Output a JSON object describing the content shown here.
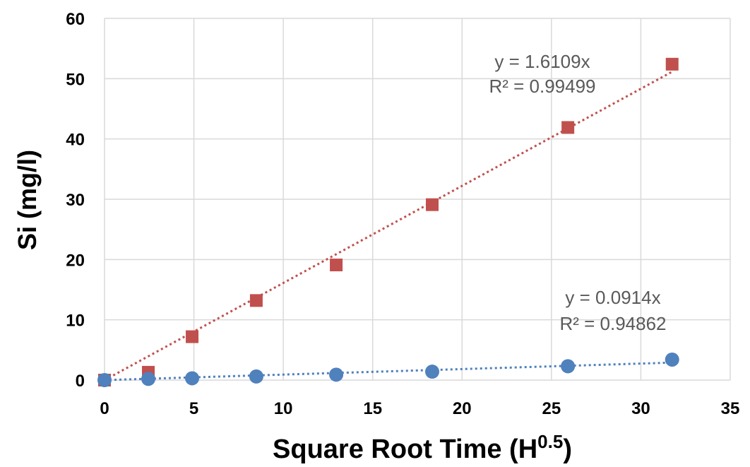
{
  "chart_data": {
    "type": "scatter",
    "xlabel": {
      "base": "Square Root Time (H",
      "sup": "0.5",
      "close": ")"
    },
    "ylabel": "Si (mg/l)",
    "xlim": [
      0,
      35
    ],
    "ylim": [
      0,
      60
    ],
    "xticks": [
      0,
      5,
      10,
      15,
      20,
      25,
      30,
      35
    ],
    "yticks": [
      0,
      10,
      20,
      30,
      40,
      50,
      60
    ],
    "grid": true,
    "series": [
      {
        "marker": "square",
        "color": "#C0504D",
        "x": [
          0,
          2.45,
          4.9,
          8.49,
          12.96,
          18.33,
          25.92,
          31.75
        ],
        "y": [
          0,
          1.3,
          7.2,
          13.2,
          19.1,
          29.1,
          41.9,
          52.4
        ],
        "trendline": {
          "slope": 1.6109,
          "equation": "y = 1.6109x",
          "r2": "R² = 0.99499"
        }
      },
      {
        "marker": "circle",
        "color": "#4F81BD",
        "x": [
          0,
          2.45,
          4.9,
          8.49,
          12.96,
          18.33,
          25.92,
          31.75
        ],
        "y": [
          0,
          0.2,
          0.3,
          0.6,
          0.9,
          1.4,
          2.3,
          3.4
        ],
        "trendline": {
          "slope": 0.0914,
          "equation": "y = 0.0914x",
          "r2": "R² = 0.94862"
        }
      }
    ]
  }
}
